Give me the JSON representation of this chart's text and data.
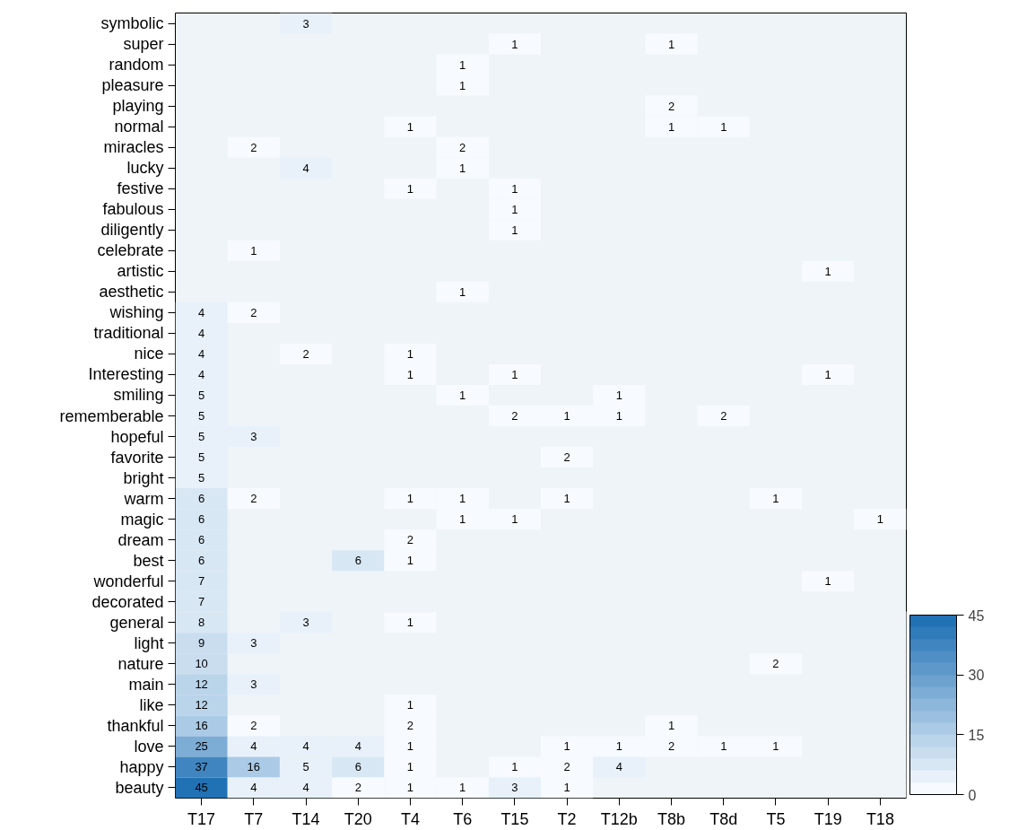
{
  "chart_data": {
    "type": "heatmap",
    "categories": [
      "T17",
      "T7",
      "T14",
      "T20",
      "T4",
      "T6",
      "T15",
      "T2",
      "T12b",
      "T8b",
      "T8d",
      "T5",
      "T19",
      "T18"
    ],
    "y_categories": [
      "symbolic",
      "super",
      "random",
      "pleasure",
      "playing",
      "normal",
      "miracles",
      "lucky",
      "festive",
      "fabulous",
      "diligently",
      "celebrate",
      "artistic",
      "aesthetic",
      "wishing",
      "traditional",
      "nice",
      "Interesting",
      "smiling",
      "rememberable",
      "hopeful",
      "favorite",
      "bright",
      "warm",
      "magic",
      "dream",
      "best",
      "wonderful",
      "decorated",
      "general",
      "light",
      "nature",
      "main",
      "like",
      "thankful",
      "love",
      "happy",
      "beauty"
    ],
    "cells": [
      [
        null,
        null,
        3,
        null,
        null,
        null,
        null,
        null,
        null,
        null,
        null,
        null,
        null,
        null
      ],
      [
        null,
        null,
        null,
        null,
        null,
        null,
        1,
        null,
        null,
        1,
        null,
        null,
        null,
        null
      ],
      [
        null,
        null,
        null,
        null,
        null,
        1,
        null,
        null,
        null,
        null,
        null,
        null,
        null,
        null
      ],
      [
        null,
        null,
        null,
        null,
        null,
        1,
        null,
        null,
        null,
        null,
        null,
        null,
        null,
        null
      ],
      [
        null,
        null,
        null,
        null,
        null,
        null,
        null,
        null,
        null,
        2,
        null,
        null,
        null,
        null
      ],
      [
        null,
        null,
        null,
        null,
        1,
        null,
        null,
        null,
        null,
        1,
        1,
        null,
        null,
        null
      ],
      [
        null,
        2,
        null,
        null,
        null,
        2,
        null,
        null,
        null,
        null,
        null,
        null,
        null,
        null
      ],
      [
        null,
        null,
        4,
        null,
        null,
        1,
        null,
        null,
        null,
        null,
        null,
        null,
        null,
        null
      ],
      [
        null,
        null,
        null,
        null,
        1,
        null,
        1,
        null,
        null,
        null,
        null,
        null,
        null,
        null
      ],
      [
        null,
        null,
        null,
        null,
        null,
        null,
        1,
        null,
        null,
        null,
        null,
        null,
        null,
        null
      ],
      [
        null,
        null,
        null,
        null,
        null,
        null,
        1,
        null,
        null,
        null,
        null,
        null,
        null,
        null
      ],
      [
        null,
        1,
        null,
        null,
        null,
        null,
        null,
        null,
        null,
        null,
        null,
        null,
        null,
        null
      ],
      [
        null,
        null,
        null,
        null,
        null,
        null,
        null,
        null,
        null,
        null,
        null,
        null,
        1,
        null
      ],
      [
        null,
        null,
        null,
        null,
        null,
        1,
        null,
        null,
        null,
        null,
        null,
        null,
        null,
        null
      ],
      [
        4,
        2,
        null,
        null,
        null,
        null,
        null,
        null,
        null,
        null,
        null,
        null,
        null,
        null
      ],
      [
        4,
        null,
        null,
        null,
        null,
        null,
        null,
        null,
        null,
        null,
        null,
        null,
        null,
        null
      ],
      [
        4,
        null,
        2,
        null,
        1,
        null,
        null,
        null,
        null,
        null,
        null,
        null,
        null,
        null
      ],
      [
        4,
        null,
        null,
        null,
        1,
        null,
        1,
        null,
        null,
        null,
        null,
        null,
        1,
        null
      ],
      [
        5,
        null,
        null,
        null,
        null,
        1,
        null,
        null,
        1,
        null,
        null,
        null,
        null,
        null
      ],
      [
        5,
        null,
        null,
        null,
        null,
        null,
        2,
        1,
        1,
        null,
        2,
        null,
        null,
        null
      ],
      [
        5,
        3,
        null,
        null,
        null,
        null,
        null,
        null,
        null,
        null,
        null,
        null,
        null,
        null
      ],
      [
        5,
        null,
        null,
        null,
        null,
        null,
        null,
        2,
        null,
        null,
        null,
        null,
        null,
        null
      ],
      [
        5,
        null,
        null,
        null,
        null,
        null,
        null,
        null,
        null,
        null,
        null,
        null,
        null,
        null
      ],
      [
        6,
        2,
        null,
        null,
        1,
        1,
        null,
        1,
        null,
        null,
        null,
        1,
        null,
        null
      ],
      [
        6,
        null,
        null,
        null,
        null,
        1,
        1,
        null,
        null,
        null,
        null,
        null,
        null,
        1
      ],
      [
        6,
        null,
        null,
        null,
        2,
        null,
        null,
        null,
        null,
        null,
        null,
        null,
        null,
        null
      ],
      [
        6,
        null,
        null,
        6,
        1,
        null,
        null,
        null,
        null,
        null,
        null,
        null,
        null,
        null
      ],
      [
        7,
        null,
        null,
        null,
        null,
        null,
        null,
        null,
        null,
        null,
        null,
        null,
        1,
        null
      ],
      [
        7,
        null,
        null,
        null,
        null,
        null,
        null,
        null,
        null,
        null,
        null,
        null,
        null,
        null
      ],
      [
        8,
        null,
        3,
        null,
        1,
        null,
        null,
        null,
        null,
        null,
        null,
        null,
        null,
        null
      ],
      [
        9,
        3,
        null,
        null,
        null,
        null,
        null,
        null,
        null,
        null,
        null,
        null,
        null,
        null
      ],
      [
        10,
        null,
        null,
        null,
        null,
        null,
        null,
        null,
        null,
        null,
        null,
        2,
        null,
        null
      ],
      [
        12,
        3,
        null,
        null,
        null,
        null,
        null,
        null,
        null,
        null,
        null,
        null,
        null,
        null
      ],
      [
        12,
        null,
        null,
        null,
        1,
        null,
        null,
        null,
        null,
        null,
        null,
        null,
        null,
        null
      ],
      [
        16,
        2,
        null,
        null,
        2,
        null,
        null,
        null,
        null,
        1,
        null,
        null,
        null,
        null
      ],
      [
        25,
        4,
        4,
        4,
        1,
        null,
        null,
        1,
        1,
        2,
        1,
        1,
        null,
        null
      ],
      [
        37,
        16,
        5,
        6,
        1,
        null,
        1,
        2,
        4,
        null,
        null,
        null,
        null,
        null
      ],
      [
        45,
        4,
        4,
        2,
        1,
        1,
        3,
        1,
        null,
        null,
        null,
        null,
        null,
        null
      ]
    ],
    "clim": [
      0,
      45
    ],
    "cticks": [
      0,
      15,
      30,
      45
    ],
    "data_labels": true,
    "grid": false
  }
}
